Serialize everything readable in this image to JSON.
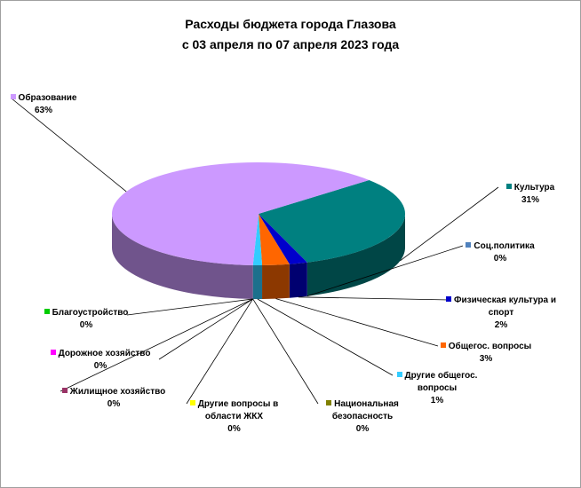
{
  "chart_data": {
    "type": "pie3d",
    "title": "Расходы бюджета города Глазова",
    "subtitle": "с 03 апреля по 07 апреля 2023 года",
    "categories": [
      "Культура",
      "Соц.политика",
      "Физическая культура и спорт",
      "Общегос. вопросы",
      "Другие общегос. вопросы",
      "Национальная безопасность",
      "Другие вопросы в области ЖКХ",
      "Жилищное хозяйство",
      "Дорожное хозяйство",
      "Благоустройство",
      "Образование"
    ],
    "values": [
      31,
      0,
      2,
      3,
      1,
      0,
      0,
      0,
      0,
      0,
      63
    ],
    "value_labels": [
      "31%",
      "0%",
      "2%",
      "3%",
      "1%",
      "0%",
      "0%",
      "0%",
      "0%",
      "0%",
      "63%"
    ],
    "colors": [
      "#008080",
      "#4f81bd",
      "#0000cc",
      "#ff6600",
      "#33ccff",
      "#808000",
      "#ffff00",
      "#993366",
      "#ff00ff",
      "#00cc00",
      "#cc99ff"
    ]
  }
}
